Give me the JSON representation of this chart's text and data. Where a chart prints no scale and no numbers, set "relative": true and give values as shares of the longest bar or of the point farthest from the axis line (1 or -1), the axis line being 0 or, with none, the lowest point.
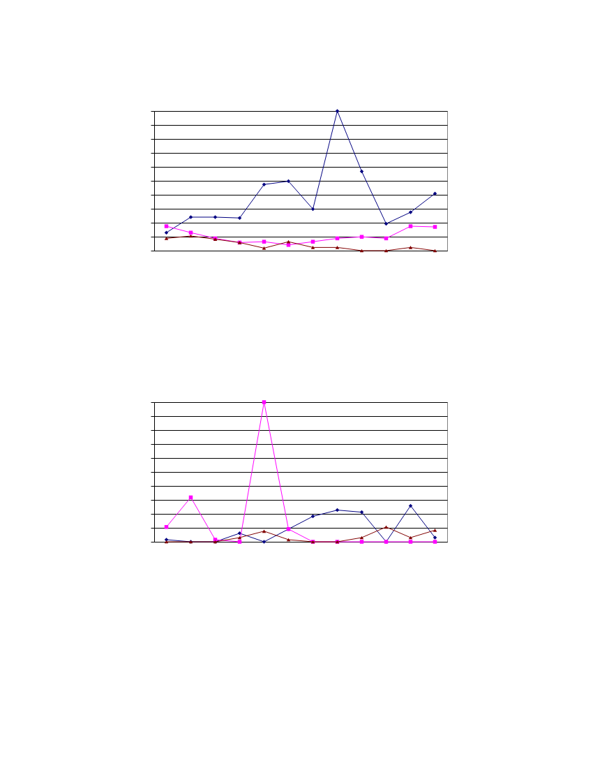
{
  "chart_data": [
    {
      "type": "line",
      "relative": true,
      "grid": "y",
      "categories": [
        null,
        null,
        null,
        null,
        null,
        null,
        null,
        null,
        null,
        null,
        null,
        null
      ],
      "series": [
        {
          "color": "#000080",
          "marker": "diamond",
          "values": [
            0.129,
            0.24,
            0.24,
            0.234,
            0.474,
            0.497,
            0.298,
            1,
            0.567,
            0.193,
            0.275,
            0.409
          ]
        },
        {
          "color": "#ff00ff",
          "marker": "square",
          "values": [
            0.175,
            0.129,
            0.088,
            0.058,
            0.064,
            0.041,
            0.064,
            0.088,
            0.099,
            0.088,
            0.175,
            0.17
          ]
        },
        {
          "color": "#800000",
          "marker": "triangle",
          "values": [
            0.088,
            0.105,
            0.082,
            0.058,
            0.018,
            0.064,
            0.023,
            0.023,
            0,
            0,
            0.023,
            0
          ]
        }
      ]
    },
    {
      "type": "line",
      "relative": true,
      "grid": "y",
      "categories": [
        null,
        null,
        null,
        null,
        null,
        null,
        null,
        null,
        null,
        null,
        null,
        null
      ],
      "series": [
        {
          "color": "#000080",
          "marker": "diamond",
          "values": [
            0.015,
            0,
            0,
            0.061,
            0,
            0.091,
            0.182,
            0.227,
            0.212,
            0,
            0.258,
            0.03
          ]
        },
        {
          "color": "#ff00ff",
          "marker": "square",
          "values": [
            0.106,
            0.318,
            0.015,
            0,
            1,
            0.091,
            0,
            0,
            0,
            0,
            0,
            0
          ]
        },
        {
          "color": "#800000",
          "marker": "triangle",
          "values": [
            0,
            0,
            0,
            0.03,
            0.076,
            0.015,
            0,
            0,
            0.03,
            0.106,
            0.03,
            0.083
          ]
        }
      ]
    }
  ]
}
